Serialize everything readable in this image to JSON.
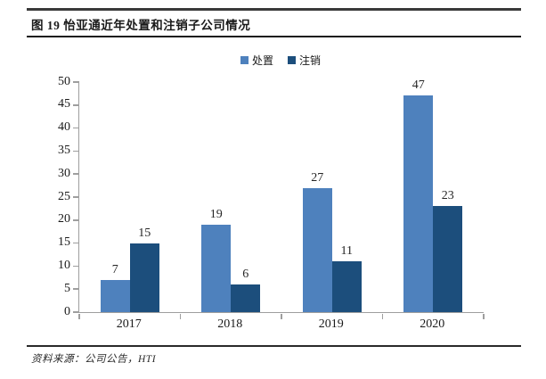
{
  "page": {
    "title": "图 19 怡亚通近年处置和注销子公司情况",
    "source": "资料来源：公司公告，HTI"
  },
  "colors": {
    "series_disposal": "#4E81BD",
    "series_deregistration": "#1C4E7C",
    "axis": "#9E9E9E",
    "rule_heavy": "#3A3A3A",
    "rule_thin": "#1A1A1A",
    "text": "#1A1A1A"
  },
  "chart_data": {
    "type": "bar",
    "title": "图 19 怡亚通近年处置和注销子公司情况",
    "categories": [
      "2017",
      "2018",
      "2019",
      "2020"
    ],
    "series": [
      {
        "name": "处置",
        "key": "disposal",
        "color": "#4E81BD",
        "values": [
          7,
          19,
          27,
          47
        ]
      },
      {
        "name": "注销",
        "key": "deregistration",
        "color": "#1C4E7C",
        "values": [
          15,
          6,
          11,
          23
        ]
      }
    ],
    "ylim": [
      0,
      50
    ],
    "yticks": [
      0,
      5,
      10,
      15,
      20,
      25,
      30,
      35,
      40,
      45,
      50
    ],
    "grid": false,
    "legend_position": "top-center",
    "data_labels": true,
    "xlabel": "",
    "ylabel": ""
  }
}
